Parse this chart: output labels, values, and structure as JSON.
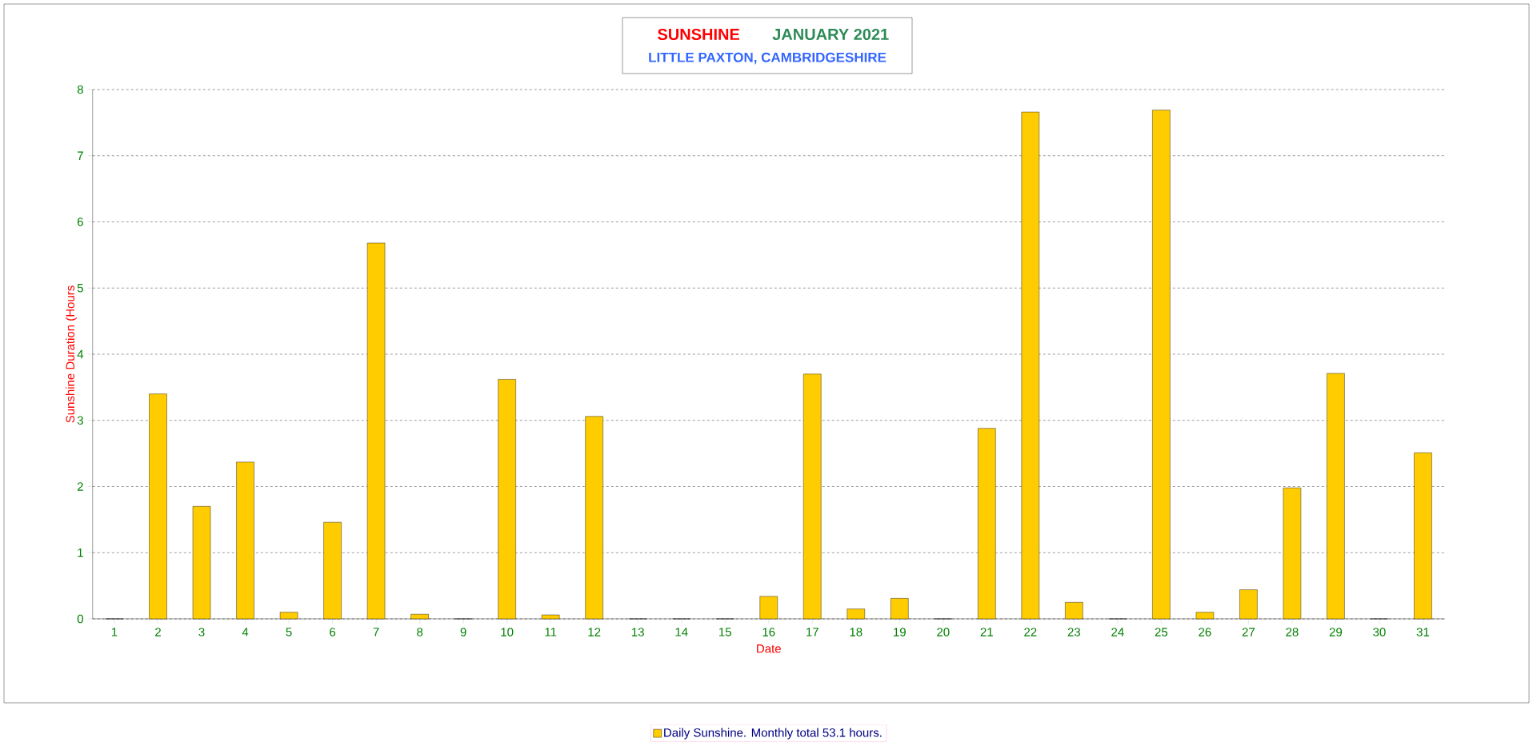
{
  "chart_data": {
    "type": "bar",
    "title": "SUNSHINE",
    "subtitle": "JANUARY 2021",
    "annotations": [
      "LITTLE PAXTON, CAMBRIDGESHIRE"
    ],
    "xlabel": "Date",
    "ylabel": "Sunshine Duration (Hours",
    "categories": [
      "1",
      "2",
      "3",
      "4",
      "5",
      "6",
      "7",
      "8",
      "9",
      "10",
      "11",
      "12",
      "13",
      "14",
      "15",
      "16",
      "17",
      "18",
      "19",
      "20",
      "21",
      "22",
      "23",
      "24",
      "25",
      "26",
      "27",
      "28",
      "29",
      "30",
      "31"
    ],
    "series": [
      {
        "name": "Daily Sunshine. Monthly total 53.1 hours.",
        "color": "#ffcc00",
        "values": [
          0,
          3.4,
          1.7,
          2.37,
          0.1,
          1.46,
          5.68,
          0.07,
          0,
          3.62,
          0.06,
          3.06,
          0,
          0,
          0,
          0.34,
          3.7,
          0.15,
          0.31,
          0,
          2.88,
          7.66,
          0.25,
          0,
          7.69,
          0.1,
          0.44,
          1.98,
          3.71,
          0,
          2.51
        ]
      }
    ],
    "ylim": [
      0,
      8
    ],
    "yticks": [
      0,
      1,
      2,
      3,
      4,
      5,
      6,
      7,
      8
    ],
    "grid": "y",
    "legend": "bottom"
  }
}
